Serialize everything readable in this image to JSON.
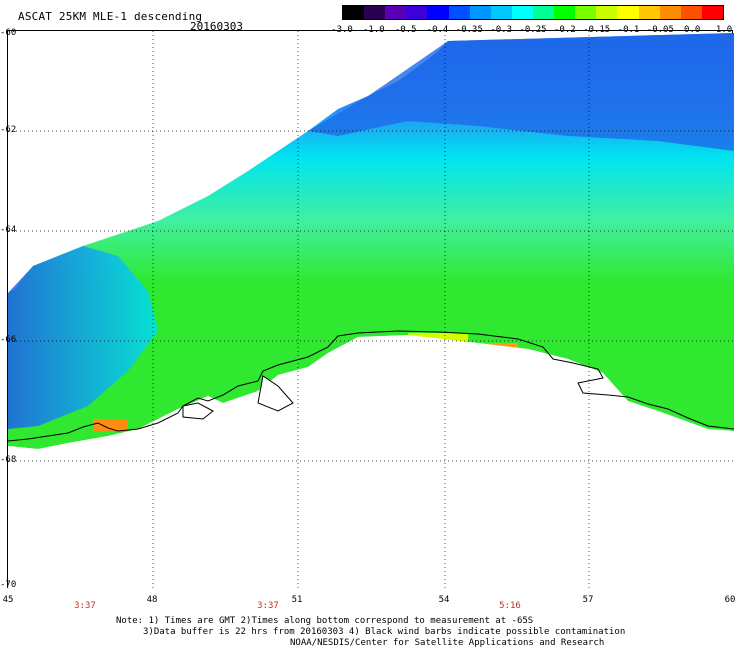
{
  "header": {
    "title": "ASCAT 25KM MLE-1 descending",
    "date": "20160303"
  },
  "colorbar": {
    "ticks": [
      "-3.0",
      "-1.0",
      "-0.5",
      "-0.4",
      "-0.35",
      "-0.3",
      "-0.25",
      "-0.2",
      "-0.15",
      "-0.1",
      "-0.05",
      "0.0",
      "1.0"
    ],
    "colors": [
      "#000000",
      "#2a0050",
      "#5a00b4",
      "#3c00dc",
      "#0000ff",
      "#0050ff",
      "#0096ff",
      "#00c8ff",
      "#00ffff",
      "#00ff96",
      "#00ff00",
      "#78ff00",
      "#c8ff00",
      "#ffff00",
      "#ffc800",
      "#ff8c00",
      "#ff5000",
      "#ff0000"
    ]
  },
  "axes": {
    "y_labels": [
      "-60",
      "-62",
      "-64",
      "-66",
      "-68",
      "-70"
    ],
    "x_labels": [
      "45",
      "48",
      "51",
      "54",
      "57",
      "60"
    ],
    "times": [
      "3:37",
      "3:37",
      "5:16"
    ]
  },
  "notes": {
    "line1": "Note: 1) Times are GMT 2)Times along bottom correspond to measurement at -65S",
    "line2": "3)Data buffer is 22 hrs from 20160303 4) Black wind barbs indicate possible contamination",
    "line3": "NOAA/NESDIS/Center for Satellite Applications and Research"
  },
  "colors": {
    "sea_cyan": "#00e8f0",
    "sea_blue": "#1e6cf0",
    "land": "#ffffff",
    "coast": "#000000"
  }
}
